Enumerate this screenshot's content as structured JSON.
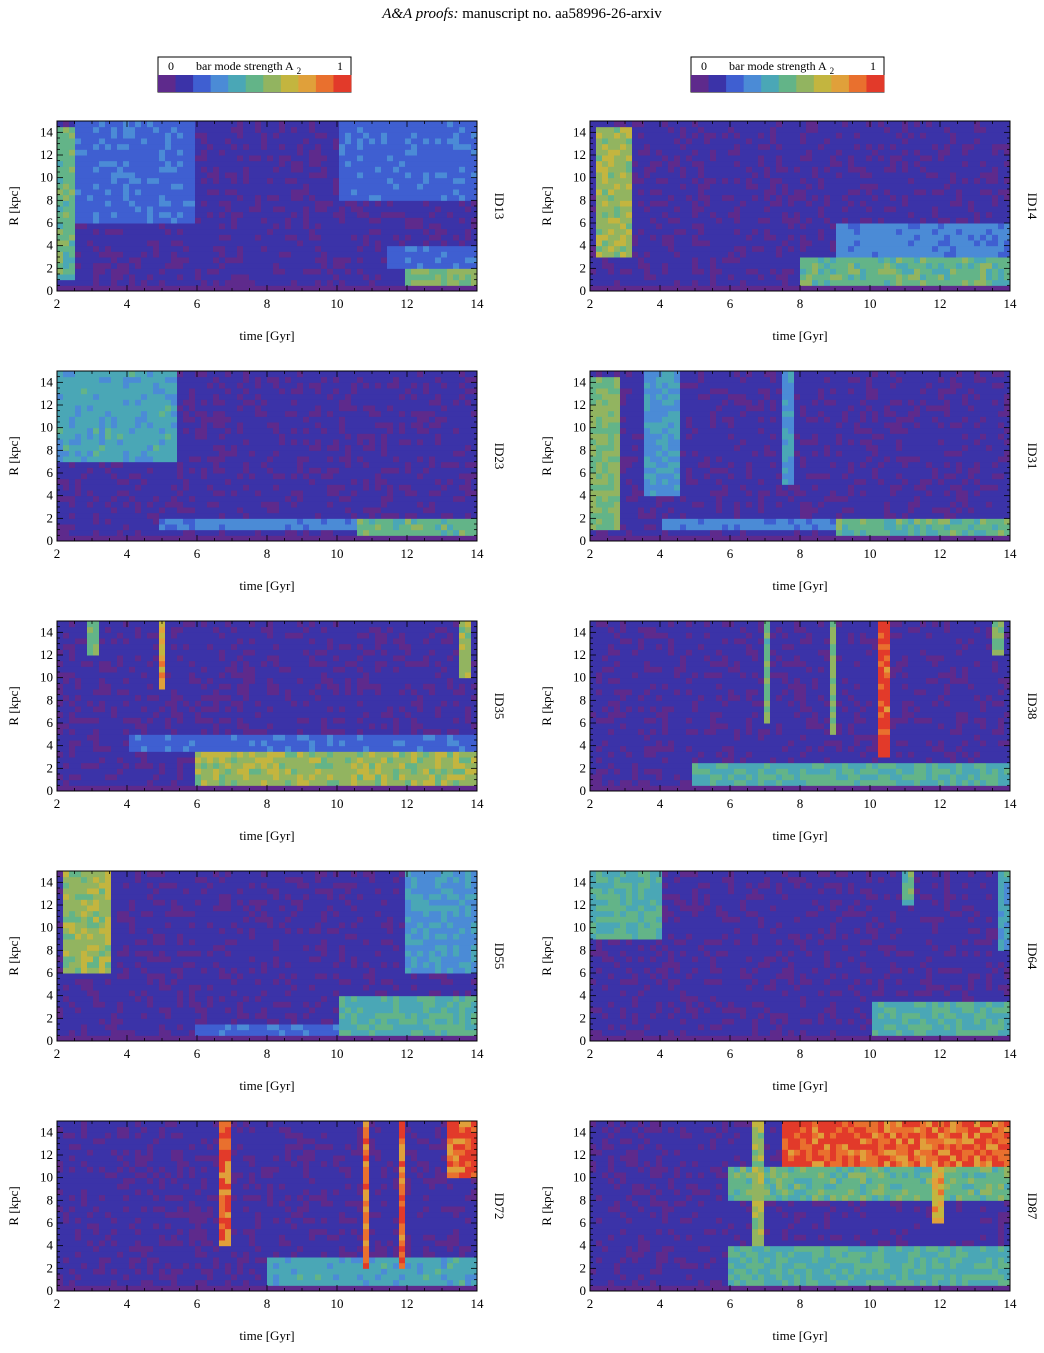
{
  "header": {
    "journal": "A&A proofs:",
    "manuscript": " manuscript no. aa58996-26-arxiv"
  },
  "colorbar": {
    "min_label": "0",
    "max_label": "1",
    "title": "bar mode strength A",
    "title_sub": "2",
    "colors": [
      "#5e2a8c",
      "#3b33a8",
      "#3f5fd1",
      "#4b8bd6",
      "#4aa7b6",
      "#63b488",
      "#92b460",
      "#c3b53f",
      "#e0a03a",
      "#e9702e",
      "#e23a2a"
    ]
  },
  "chart_data": [
    {
      "type": "heatmap",
      "id": "ID13",
      "panel_label": "ID13",
      "xlabel": "time [Gyr]",
      "ylabel": "R [kpc]",
      "xlim": [
        2,
        14
      ],
      "ylim": [
        0,
        15
      ],
      "xticks": [
        2,
        4,
        6,
        8,
        10,
        12,
        14
      ],
      "yticks": [
        0,
        2,
        4,
        6,
        8,
        10,
        12,
        14
      ],
      "features": [
        {
          "t": [
            2,
            2.5
          ],
          "r": [
            1,
            14.5
          ],
          "a": 0.5
        },
        {
          "t": [
            2.5,
            6
          ],
          "r": [
            6,
            15
          ],
          "a": 0.25
        },
        {
          "t": [
            10,
            14
          ],
          "r": [
            8,
            15
          ],
          "a": 0.25
        },
        {
          "t": [
            12,
            14
          ],
          "r": [
            0.5,
            2
          ],
          "a": 0.55
        },
        {
          "t": [
            11.5,
            14
          ],
          "r": [
            2,
            4
          ],
          "a": 0.25
        }
      ]
    },
    {
      "type": "heatmap",
      "id": "ID14",
      "panel_label": "ID14",
      "xlabel": "time [Gyr]",
      "ylabel": "R [kpc]",
      "xlim": [
        2,
        14
      ],
      "ylim": [
        0,
        15
      ],
      "xticks": [
        2,
        4,
        6,
        8,
        10,
        12,
        14
      ],
      "yticks": [
        0,
        2,
        4,
        6,
        8,
        10,
        12,
        14
      ],
      "features": [
        {
          "t": [
            2.2,
            3.2
          ],
          "r": [
            3,
            14.5
          ],
          "a": 0.6
        },
        {
          "t": [
            8,
            14
          ],
          "r": [
            0.5,
            3
          ],
          "a": 0.5
        },
        {
          "t": [
            9,
            14
          ],
          "r": [
            3,
            6
          ],
          "a": 0.3
        }
      ]
    },
    {
      "type": "heatmap",
      "id": "ID23",
      "panel_label": "ID23",
      "xlabel": "time [Gyr]",
      "ylabel": "R [kpc]",
      "xlim": [
        2,
        14
      ],
      "ylim": [
        0,
        15
      ],
      "xticks": [
        2,
        4,
        6,
        8,
        10,
        12,
        14
      ],
      "yticks": [
        0,
        2,
        4,
        6,
        8,
        10,
        12,
        14
      ],
      "features": [
        {
          "t": [
            2,
            5.5
          ],
          "r": [
            7,
            15
          ],
          "a": 0.4
        },
        {
          "t": [
            5,
            14
          ],
          "r": [
            0.8,
            2
          ],
          "a": 0.3
        },
        {
          "t": [
            10.5,
            14
          ],
          "r": [
            0.5,
            1.8
          ],
          "a": 0.5
        }
      ]
    },
    {
      "type": "heatmap",
      "id": "ID31",
      "panel_label": "ID31",
      "xlabel": "time [Gyr]",
      "ylabel": "R [kpc]",
      "xlim": [
        2,
        14
      ],
      "ylim": [
        0,
        15
      ],
      "xticks": [
        2,
        4,
        6,
        8,
        10,
        12,
        14
      ],
      "yticks": [
        0,
        2,
        4,
        6,
        8,
        10,
        12,
        14
      ],
      "features": [
        {
          "t": [
            2,
            2.8
          ],
          "r": [
            1,
            14.5
          ],
          "a": 0.55
        },
        {
          "t": [
            3.5,
            4.5
          ],
          "r": [
            4,
            15
          ],
          "a": 0.35
        },
        {
          "t": [
            7.5,
            7.8
          ],
          "r": [
            5,
            15
          ],
          "a": 0.35
        },
        {
          "t": [
            4,
            14
          ],
          "r": [
            0.8,
            2
          ],
          "a": 0.3
        },
        {
          "t": [
            9,
            14
          ],
          "r": [
            0.5,
            1.8
          ],
          "a": 0.5
        }
      ]
    },
    {
      "type": "heatmap",
      "id": "ID35",
      "panel_label": "ID35",
      "xlabel": "time [Gyr]",
      "ylabel": "R [kpc]",
      "xlim": [
        2,
        14
      ],
      "ylim": [
        0,
        15
      ],
      "xticks": [
        2,
        4,
        6,
        8,
        10,
        12,
        14
      ],
      "yticks": [
        0,
        2,
        4,
        6,
        8,
        10,
        12,
        14
      ],
      "features": [
        {
          "t": [
            6,
            14
          ],
          "r": [
            0.5,
            3.5
          ],
          "a": 0.6
        },
        {
          "t": [
            4,
            14
          ],
          "r": [
            3.5,
            5
          ],
          "a": 0.25
        },
        {
          "t": [
            4.9,
            5
          ],
          "r": [
            9,
            15
          ],
          "a": 0.75
        },
        {
          "t": [
            13.4,
            13.8
          ],
          "r": [
            10,
            15
          ],
          "a": 0.6
        },
        {
          "t": [
            2.8,
            3.2
          ],
          "r": [
            12,
            15
          ],
          "a": 0.55
        }
      ]
    },
    {
      "type": "heatmap",
      "id": "ID38",
      "panel_label": "ID38",
      "xlabel": "time [Gyr]",
      "ylabel": "R [kpc]",
      "xlim": [
        2,
        14
      ],
      "ylim": [
        0,
        15
      ],
      "xticks": [
        2,
        4,
        6,
        8,
        10,
        12,
        14
      ],
      "yticks": [
        0,
        2,
        4,
        6,
        8,
        10,
        12,
        14
      ],
      "features": [
        {
          "t": [
            10.2,
            10.5
          ],
          "r": [
            3,
            15
          ],
          "a": 0.95
        },
        {
          "t": [
            8.8,
            9
          ],
          "r": [
            5,
            15
          ],
          "a": 0.55
        },
        {
          "t": [
            6.9,
            7.1
          ],
          "r": [
            6,
            15
          ],
          "a": 0.5
        },
        {
          "t": [
            5,
            14
          ],
          "r": [
            0.5,
            2.5
          ],
          "a": 0.45
        },
        {
          "t": [
            13.5,
            13.8
          ],
          "r": [
            12,
            15
          ],
          "a": 0.55
        }
      ]
    },
    {
      "type": "heatmap",
      "id": "ID55",
      "panel_label": "ID55",
      "xlabel": "time [Gyr]",
      "ylabel": "R [kpc]",
      "xlim": [
        2,
        14
      ],
      "ylim": [
        0,
        15
      ],
      "xticks": [
        2,
        4,
        6,
        8,
        10,
        12,
        14
      ],
      "yticks": [
        0,
        2,
        4,
        6,
        8,
        10,
        12,
        14
      ],
      "features": [
        {
          "t": [
            2.2,
            3.5
          ],
          "r": [
            6,
            15
          ],
          "a": 0.6
        },
        {
          "t": [
            10,
            14
          ],
          "r": [
            0.5,
            4
          ],
          "a": 0.45
        },
        {
          "t": [
            6,
            10
          ],
          "r": [
            0.5,
            1.5
          ],
          "a": 0.25
        },
        {
          "t": [
            12,
            14
          ],
          "r": [
            6,
            15
          ],
          "a": 0.35
        }
      ]
    },
    {
      "type": "heatmap",
      "id": "ID64",
      "panel_label": "ID64",
      "xlabel": "time [Gyr]",
      "ylabel": "R [kpc]",
      "xlim": [
        2,
        14
      ],
      "ylim": [
        0,
        15
      ],
      "xticks": [
        2,
        4,
        6,
        8,
        10,
        12,
        14
      ],
      "yticks": [
        0,
        2,
        4,
        6,
        8,
        10,
        12,
        14
      ],
      "features": [
        {
          "t": [
            2,
            4
          ],
          "r": [
            9,
            15
          ],
          "a": 0.45
        },
        {
          "t": [
            10,
            14
          ],
          "r": [
            0.5,
            3.5
          ],
          "a": 0.45
        },
        {
          "t": [
            11,
            11.3
          ],
          "r": [
            12,
            15
          ],
          "a": 0.5
        },
        {
          "t": [
            13.7,
            14
          ],
          "r": [
            8,
            15
          ],
          "a": 0.4
        }
      ]
    },
    {
      "type": "heatmap",
      "id": "ID72",
      "panel_label": "ID72",
      "xlabel": "time [Gyr]",
      "ylabel": "R [kpc]",
      "xlim": [
        2,
        14
      ],
      "ylim": [
        0,
        15
      ],
      "xticks": [
        2,
        4,
        6,
        8,
        10,
        12,
        14
      ],
      "yticks": [
        0,
        2,
        4,
        6,
        8,
        10,
        12,
        14
      ],
      "features": [
        {
          "t": [
            6.6,
            6.9
          ],
          "r": [
            4,
            15
          ],
          "a": 0.9
        },
        {
          "t": [
            10.7,
            10.9
          ],
          "r": [
            2,
            15
          ],
          "a": 0.85
        },
        {
          "t": [
            11.8,
            12
          ],
          "r": [
            2,
            15
          ],
          "a": 0.9
        },
        {
          "t": [
            13.2,
            14
          ],
          "r": [
            10,
            15
          ],
          "a": 0.9
        },
        {
          "t": [
            8,
            14
          ],
          "r": [
            0.5,
            3
          ],
          "a": 0.4
        }
      ]
    },
    {
      "type": "heatmap",
      "id": "ID87",
      "panel_label": "ID87",
      "xlabel": "time [Gyr]",
      "ylabel": "R [kpc]",
      "xlim": [
        2,
        14
      ],
      "ylim": [
        0,
        15
      ],
      "xticks": [
        2,
        4,
        6,
        8,
        10,
        12,
        14
      ],
      "yticks": [
        0,
        2,
        4,
        6,
        8,
        10,
        12,
        14
      ],
      "features": [
        {
          "t": [
            7.5,
            14
          ],
          "r": [
            11,
            15
          ],
          "a": 0.9
        },
        {
          "t": [
            6,
            14
          ],
          "r": [
            8,
            11
          ],
          "a": 0.5
        },
        {
          "t": [
            6,
            14
          ],
          "r": [
            0.5,
            4
          ],
          "a": 0.45
        },
        {
          "t": [
            11.8,
            12.1
          ],
          "r": [
            6,
            15
          ],
          "a": 0.75
        },
        {
          "t": [
            6.6,
            6.9
          ],
          "r": [
            4,
            15
          ],
          "a": 0.6
        }
      ]
    }
  ]
}
